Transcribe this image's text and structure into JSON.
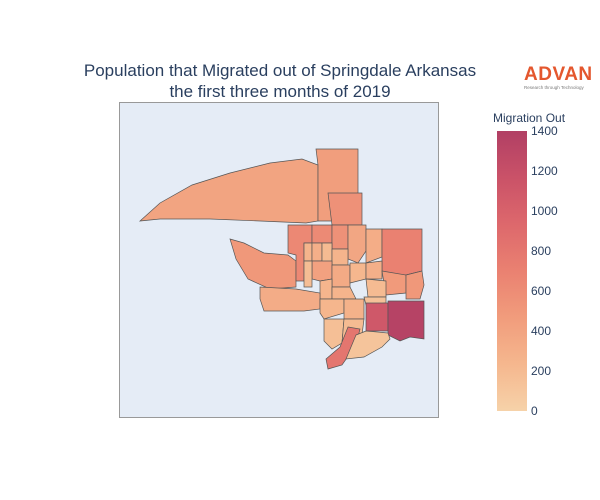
{
  "title": {
    "line1": "Population that Migrated out of Springdale Arkansas",
    "line2": "the first three months of 2019"
  },
  "logo": {
    "wordmark": "ADVAN",
    "tagline": "Research through Technology"
  },
  "colorbar": {
    "title": "Migration Out",
    "min": 0,
    "max": 1400,
    "ticks": [
      0,
      200,
      400,
      600,
      800,
      1000,
      1200,
      1400
    ],
    "colorscale": [
      "#f6d2a9",
      "#f5b78e",
      "#f19c7c",
      "#ea8171",
      "#dd686c",
      "#ca5268",
      "#b13f64"
    ]
  },
  "map": {
    "background": "#e5ecf6",
    "regions": [
      {
        "id": "northwest-large",
        "value": 400
      },
      {
        "id": "north-central-tall",
        "value": 450
      },
      {
        "id": "north-east-column",
        "value": 560
      },
      {
        "id": "west-lobe",
        "value": 500
      },
      {
        "id": "tract-a",
        "value": 640
      },
      {
        "id": "tract-b",
        "value": 620
      },
      {
        "id": "tract-c",
        "value": 560
      },
      {
        "id": "tract-d",
        "value": 380
      },
      {
        "id": "tract-e",
        "value": 320
      },
      {
        "id": "tract-f",
        "value": 260
      },
      {
        "id": "tract-g",
        "value": 300
      },
      {
        "id": "tract-h",
        "value": 200
      },
      {
        "id": "tract-i",
        "value": 260
      },
      {
        "id": "tract-j",
        "value": 420
      },
      {
        "id": "tract-k",
        "value": 350
      },
      {
        "id": "east-large",
        "value": 700
      },
      {
        "id": "tract-l",
        "value": 180
      },
      {
        "id": "tract-m",
        "value": 230
      },
      {
        "id": "tract-n",
        "value": 300
      },
      {
        "id": "tract-o",
        "value": 250
      },
      {
        "id": "tract-p",
        "value": 260
      },
      {
        "id": "tract-q",
        "value": 480
      },
      {
        "id": "tract-r",
        "value": 200
      },
      {
        "id": "tract-s",
        "value": 500
      },
      {
        "id": "southwest-band",
        "value": 330
      },
      {
        "id": "tract-t",
        "value": 240
      },
      {
        "id": "tract-u",
        "value": 280
      },
      {
        "id": "tract-v",
        "value": 150
      },
      {
        "id": "south-high-a",
        "value": 1100
      },
      {
        "id": "south-high-b",
        "value": 1350
      },
      {
        "id": "tract-w",
        "value": 160
      },
      {
        "id": "tract-x",
        "value": 200
      },
      {
        "id": "south-strip",
        "value": 800
      },
      {
        "id": "south-tail",
        "value": 120
      }
    ]
  }
}
